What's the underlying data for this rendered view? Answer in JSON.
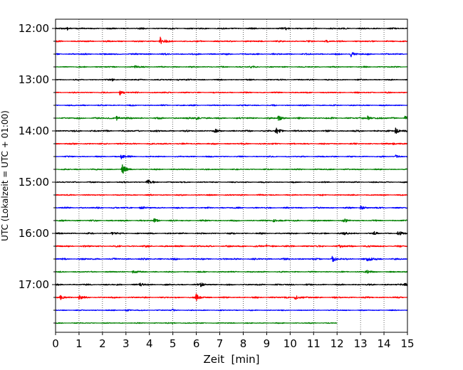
{
  "chart_data": {
    "type": "line",
    "subtype": "helicorder",
    "xlabel": "Zeit  [min]",
    "ylabel": "UTC (Lokalzeit = UTC + 01:00)",
    "xlim": [
      0,
      15
    ],
    "x_ticks": [
      "0",
      "1",
      "2",
      "3",
      "4",
      "5",
      "6",
      "7",
      "8",
      "9",
      "10",
      "11",
      "12",
      "13",
      "14",
      "15"
    ],
    "y_tick_labels": [
      "12:00",
      "13:00",
      "14:00",
      "15:00",
      "16:00",
      "17:00"
    ],
    "grid": "vertical dotted lines at each minute",
    "colors": [
      "#000000",
      "#ff0000",
      "#0000ff",
      "#008000"
    ],
    "trace_count": 24,
    "last_trace_end_min": 12,
    "series": [
      {
        "start": "12:00",
        "color": "#000000",
        "amplitude": 0.35,
        "events": [
          {
            "t": 0.5,
            "amp": 0.7
          },
          {
            "t": 9.8,
            "amp": 0.5
          }
        ]
      },
      {
        "start": "12:15",
        "color": "#ff0000",
        "amplitude": 0.35,
        "events": [
          {
            "t": 4.45,
            "amp": 2.0
          },
          {
            "t": 11.5,
            "amp": 0.4
          }
        ]
      },
      {
        "start": "12:30",
        "color": "#0000ff",
        "amplitude": 0.35,
        "events": [
          {
            "t": 12.6,
            "amp": 1.1
          }
        ]
      },
      {
        "start": "12:45",
        "color": "#008000",
        "amplitude": 0.3,
        "events": [
          {
            "t": 3.4,
            "amp": 0.5
          },
          {
            "t": 8.3,
            "amp": 0.5
          }
        ]
      },
      {
        "start": "13:00",
        "color": "#000000",
        "amplitude": 0.3,
        "events": [
          {
            "t": 2.4,
            "amp": 0.5
          },
          {
            "t": 5.2,
            "amp": 0.4
          }
        ]
      },
      {
        "start": "13:15",
        "color": "#ff0000",
        "amplitude": 0.3,
        "events": [
          {
            "t": 2.75,
            "amp": 1.4
          }
        ]
      },
      {
        "start": "13:30",
        "color": "#0000ff",
        "amplitude": 0.3,
        "events": []
      },
      {
        "start": "13:45",
        "color": "#008000",
        "amplitude": 0.4,
        "events": [
          {
            "t": 2.6,
            "amp": 1.0
          },
          {
            "t": 6.0,
            "amp": 0.8
          },
          {
            "t": 9.5,
            "amp": 1.2
          },
          {
            "t": 13.3,
            "amp": 1.0
          },
          {
            "t": 14.9,
            "amp": 0.8
          }
        ]
      },
      {
        "start": "14:00",
        "color": "#000000",
        "amplitude": 0.4,
        "events": [
          {
            "t": 9.4,
            "amp": 1.4
          },
          {
            "t": 14.5,
            "amp": 1.5
          },
          {
            "t": 6.8,
            "amp": 0.6
          }
        ]
      },
      {
        "start": "14:15",
        "color": "#ff0000",
        "amplitude": 0.35,
        "events": [
          {
            "t": 14.4,
            "amp": 0.6
          }
        ]
      },
      {
        "start": "14:30",
        "color": "#0000ff",
        "amplitude": 0.3,
        "events": [
          {
            "t": 2.8,
            "amp": 1.0
          },
          {
            "t": 14.5,
            "amp": 0.6
          }
        ]
      },
      {
        "start": "14:45",
        "color": "#008000",
        "amplitude": 0.3,
        "events": [
          {
            "t": 2.85,
            "amp": 2.2
          }
        ]
      },
      {
        "start": "15:00",
        "color": "#000000",
        "amplitude": 0.3,
        "events": [
          {
            "t": 3.9,
            "amp": 1.2
          }
        ]
      },
      {
        "start": "15:15",
        "color": "#ff0000",
        "amplitude": 0.3,
        "events": []
      },
      {
        "start": "15:30",
        "color": "#0000ff",
        "amplitude": 0.35,
        "events": [
          {
            "t": 3.6,
            "amp": 0.6
          },
          {
            "t": 13.0,
            "amp": 0.8
          }
        ]
      },
      {
        "start": "15:45",
        "color": "#008000",
        "amplitude": 0.35,
        "events": [
          {
            "t": 4.2,
            "amp": 0.7
          },
          {
            "t": 9.3,
            "amp": 0.9
          },
          {
            "t": 12.3,
            "amp": 0.7
          }
        ]
      },
      {
        "start": "16:00",
        "color": "#000000",
        "amplitude": 0.35,
        "events": [
          {
            "t": 2.4,
            "amp": 0.6
          },
          {
            "t": 12.3,
            "amp": 0.8
          },
          {
            "t": 13.6,
            "amp": 0.6
          },
          {
            "t": 14.6,
            "amp": 1.0
          }
        ]
      },
      {
        "start": "16:15",
        "color": "#ff0000",
        "amplitude": 0.4,
        "events": [
          {
            "t": 9.0,
            "amp": 0.7
          },
          {
            "t": 12.1,
            "amp": 0.6
          }
        ]
      },
      {
        "start": "16:30",
        "color": "#0000ff",
        "amplitude": 0.4,
        "events": [
          {
            "t": 11.8,
            "amp": 1.2
          },
          {
            "t": 13.3,
            "amp": 1.2
          }
        ]
      },
      {
        "start": "16:45",
        "color": "#008000",
        "amplitude": 0.3,
        "events": [
          {
            "t": 3.3,
            "amp": 0.7
          },
          {
            "t": 13.2,
            "amp": 1.2
          }
        ]
      },
      {
        "start": "17:00",
        "color": "#000000",
        "amplitude": 0.35,
        "events": [
          {
            "t": 3.6,
            "amp": 0.9
          },
          {
            "t": 6.2,
            "amp": 0.9
          },
          {
            "t": 14.9,
            "amp": 0.8
          }
        ]
      },
      {
        "start": "17:15",
        "color": "#ff0000",
        "amplitude": 0.35,
        "events": [
          {
            "t": 0.2,
            "amp": 1.1
          },
          {
            "t": 1.0,
            "amp": 0.8
          },
          {
            "t": 6.0,
            "amp": 1.5
          },
          {
            "t": 10.2,
            "amp": 1.3
          }
        ]
      },
      {
        "start": "17:30",
        "color": "#0000ff",
        "amplitude": 0.25,
        "events": [
          {
            "t": 3.0,
            "amp": 0.5
          },
          {
            "t": 5.0,
            "amp": 0.4
          }
        ]
      },
      {
        "start": "17:45",
        "color": "#008000",
        "amplitude": 0.25,
        "events": [
          {
            "t": 5.0,
            "amp": 0.3
          }
        ]
      }
    ]
  }
}
